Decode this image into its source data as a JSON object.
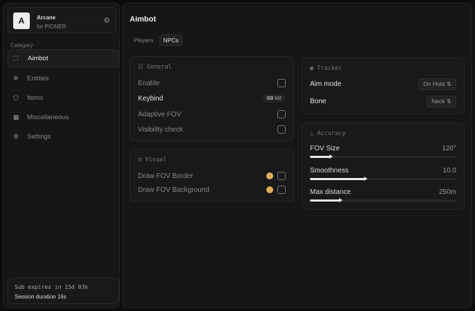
{
  "brand": {
    "logo": "A",
    "name": "Arcane",
    "subtitle": "for PIONER",
    "settings_icon": "gear-icon"
  },
  "sidebar": {
    "category_label": "Category",
    "items": [
      {
        "label": "Aimbot",
        "icon": "crosshair-icon",
        "active": true
      },
      {
        "label": "Entities",
        "icon": "entities-icon",
        "active": false
      },
      {
        "label": "Items",
        "icon": "box-icon",
        "active": false
      },
      {
        "label": "Miscellaneous",
        "icon": "misc-icon",
        "active": false
      },
      {
        "label": "Settings",
        "icon": "gear-icon",
        "active": false
      }
    ],
    "footer": {
      "sub": "Sub expires in 15d 03h",
      "session": "Session duration 16s"
    }
  },
  "main": {
    "title": "Aimbot",
    "tabs": [
      {
        "label": "Players",
        "active": false
      },
      {
        "label": "NPCs",
        "active": true
      }
    ],
    "general": {
      "title": "General",
      "enable": "Enable",
      "keybind": "Keybind",
      "keybind_value": "M2",
      "adaptive_fov": "Adaptive FOV",
      "visibility_check": "Visibility check"
    },
    "visual": {
      "title": "Visual",
      "draw_fov_border": "Draw FOV Border",
      "draw_fov_background": "Draw FOV Background",
      "color": "#d9b15c"
    },
    "tracker": {
      "title": "Tracker",
      "aim_mode": "Aim mode",
      "aim_mode_value": "On Hold",
      "bone": "Bone",
      "bone_value": "Neck"
    },
    "accuracy": {
      "title": "Accuracy",
      "sliders": [
        {
          "label": "FOV Size",
          "value": "120°",
          "fraction": 0.14
        },
        {
          "label": "Smoothness",
          "value": "10.0",
          "fraction": 0.38
        },
        {
          "label": "Max distance",
          "value": "250m",
          "fraction": 0.21
        }
      ]
    }
  }
}
